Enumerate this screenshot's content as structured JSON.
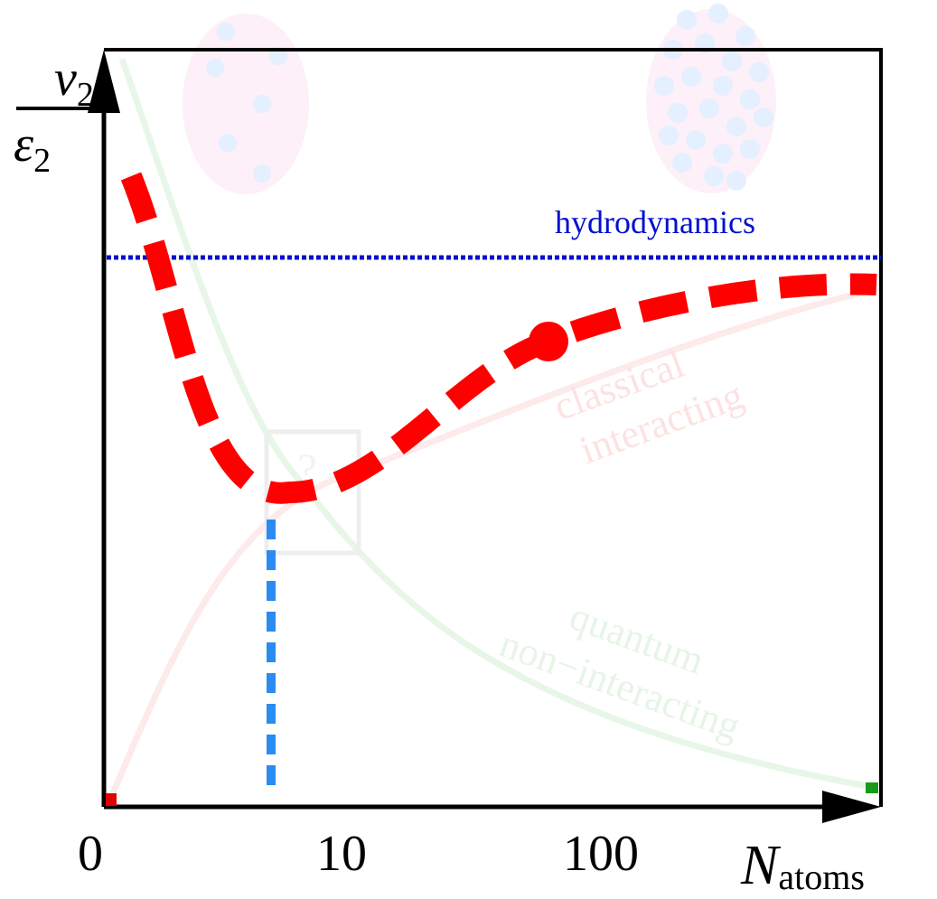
{
  "y_label": {
    "top": "v",
    "top_sub": "2",
    "bottom": "ε",
    "bottom_sub": "2"
  },
  "x_label": {
    "main": "N",
    "sub": "atoms"
  },
  "x_ticks": [
    "0",
    "10",
    "100"
  ],
  "annotations": {
    "hydrodynamics": "hydrodynamics",
    "classical": [
      "classical",
      "interacting"
    ],
    "quantum": [
      "quantum",
      "non−interacting"
    ],
    "question": "?"
  }
}
